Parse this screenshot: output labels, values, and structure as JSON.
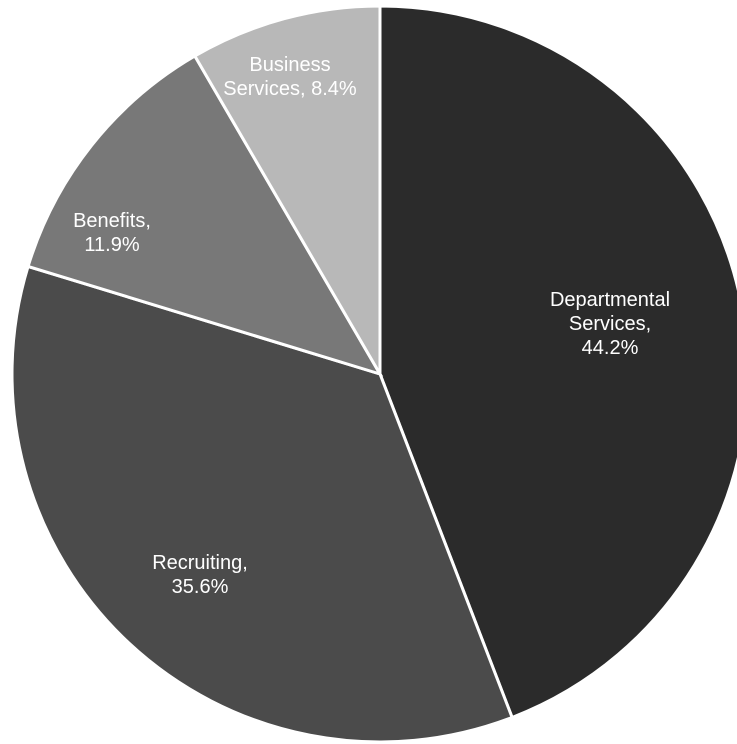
{
  "chart_data": {
    "type": "pie",
    "title": "",
    "slices": [
      {
        "label": "Departmental Services",
        "value": 44.2,
        "color": "#2b2b2b",
        "label_lines": [
          "Departmental",
          "Services,",
          "44.2%"
        ]
      },
      {
        "label": "Recruiting",
        "value": 35.6,
        "color": "#4b4b4b",
        "label_lines": [
          "Recruiting,",
          "35.6%"
        ]
      },
      {
        "label": "Benefits",
        "value": 11.9,
        "color": "#787878",
        "label_lines": [
          "Benefits,",
          "11.9%"
        ]
      },
      {
        "label": "Business Services",
        "value": 8.4,
        "color": "#b8b8b8",
        "label_lines": [
          "Business",
          "Services, 8.4%"
        ]
      }
    ],
    "direction": "clockwise",
    "start": "top",
    "legend": "none",
    "labels": "inside"
  }
}
